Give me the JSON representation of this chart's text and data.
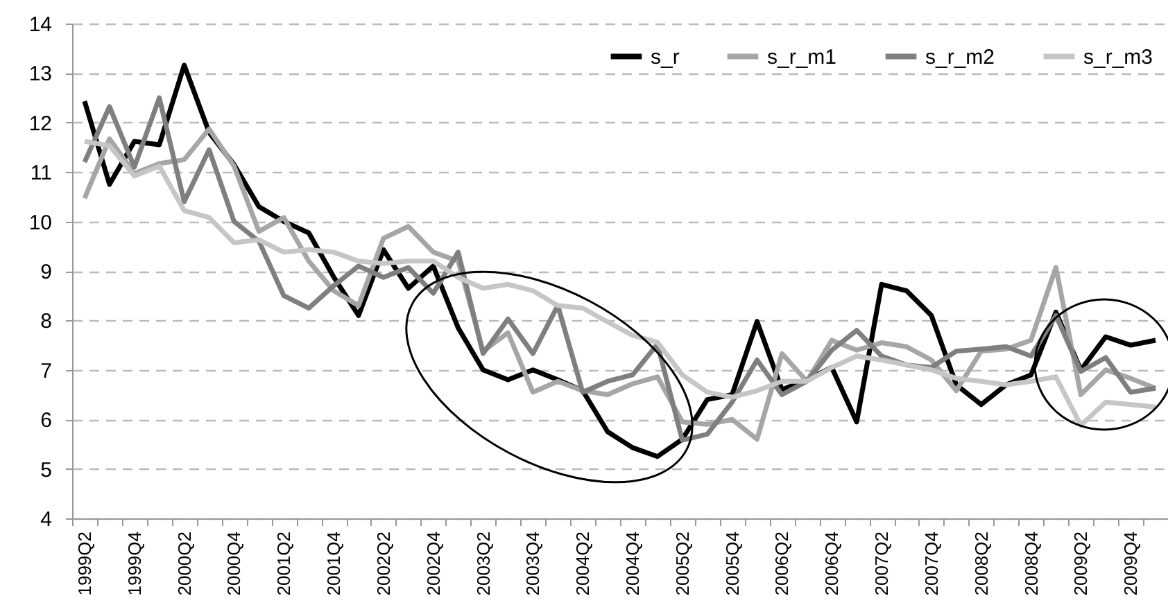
{
  "chart_data": {
    "type": "line",
    "categories": [
      "1999Q2",
      null,
      "1999Q4",
      null,
      "2000Q2",
      null,
      "2000Q4",
      null,
      "2001Q2",
      null,
      "2001Q4",
      null,
      "2002Q2",
      null,
      "2002Q4",
      null,
      "2003Q2",
      null,
      "2003Q4",
      null,
      "2004Q2",
      null,
      "2004Q4",
      null,
      "2005Q2",
      null,
      "2005Q4",
      null,
      "2006Q2",
      null,
      "2006Q4",
      null,
      "2007Q2",
      null,
      "2007Q4",
      null,
      "2008Q2",
      null,
      "2008Q4",
      null,
      "2009Q2",
      null,
      "2009Q4",
      null
    ],
    "series": [
      {
        "name": "s_r",
        "color": "#000000",
        "values": [
          12.43,
          10.75,
          11.62,
          11.55,
          13.16,
          11.8,
          11.15,
          10.3,
          10.0,
          9.77,
          8.88,
          8.1,
          9.43,
          8.65,
          9.1,
          7.85,
          7.0,
          6.8,
          7.0,
          6.8,
          6.58,
          5.75,
          5.43,
          5.25,
          5.6,
          6.4,
          6.5,
          7.98,
          6.6,
          6.8,
          7.05,
          5.95,
          8.73,
          8.6,
          8.1,
          6.7,
          6.3,
          6.7,
          6.9,
          8.17,
          7.0,
          7.67,
          7.5,
          7.6
        ]
      },
      {
        "name": "s_r_m1",
        "color": "#a6a6a6",
        "values": [
          10.47,
          11.67,
          10.97,
          11.17,
          11.25,
          11.87,
          11.12,
          9.8,
          10.08,
          9.2,
          8.6,
          8.3,
          9.66,
          9.9,
          9.38,
          9.2,
          7.38,
          7.75,
          6.55,
          6.77,
          6.58,
          6.5,
          6.72,
          6.86,
          5.95,
          5.9,
          6.0,
          5.6,
          7.33,
          6.77,
          7.6,
          7.4,
          7.55,
          7.47,
          7.2,
          6.58,
          7.38,
          7.42,
          7.6,
          9.07,
          6.5,
          7.0,
          6.83,
          6.63
        ]
      },
      {
        "name": "s_r_m2",
        "color": "#7f7f7f",
        "values": [
          11.2,
          12.32,
          11.1,
          12.5,
          10.4,
          11.45,
          10.0,
          9.6,
          8.5,
          8.25,
          8.7,
          9.1,
          8.87,
          9.07,
          8.55,
          9.38,
          7.33,
          8.03,
          7.33,
          8.3,
          6.55,
          6.77,
          6.9,
          7.52,
          5.58,
          5.7,
          6.35,
          7.2,
          6.5,
          6.77,
          7.4,
          7.8,
          7.28,
          7.1,
          7.05,
          7.38,
          7.42,
          7.47,
          7.28,
          8.1,
          6.97,
          7.25,
          6.55,
          6.63
        ]
      },
      {
        "name": "s_r_m3",
        "color": "#c6c6c6",
        "values": [
          11.62,
          11.53,
          10.92,
          11.12,
          10.22,
          10.08,
          9.57,
          9.63,
          9.38,
          9.43,
          9.38,
          9.2,
          9.15,
          9.2,
          9.2,
          8.87,
          8.65,
          8.73,
          8.6,
          8.3,
          8.25,
          7.97,
          7.7,
          7.56,
          6.9,
          6.55,
          6.45,
          6.58,
          6.77,
          6.77,
          7.05,
          7.28,
          7.2,
          7.1,
          7.0,
          6.83,
          6.77,
          6.7,
          6.77,
          6.86,
          5.88,
          6.35,
          6.3,
          6.25
        ]
      }
    ],
    "ylim": [
      4,
      14
    ],
    "yticks": [
      4,
      5,
      6,
      7,
      8,
      9,
      10,
      11,
      12,
      13,
      14
    ],
    "grid": "y",
    "legend": "top right"
  }
}
